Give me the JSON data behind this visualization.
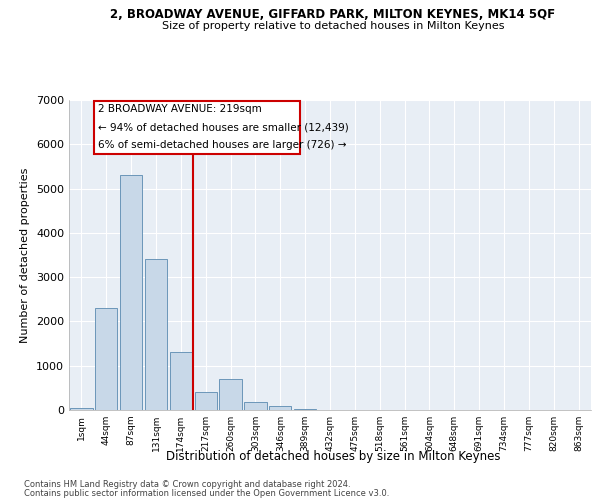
{
  "title1": "2, BROADWAY AVENUE, GIFFARD PARK, MILTON KEYNES, MK14 5QF",
  "title2": "Size of property relative to detached houses in Milton Keynes",
  "xlabel": "Distribution of detached houses by size in Milton Keynes",
  "ylabel": "Number of detached properties",
  "footnote1": "Contains HM Land Registry data © Crown copyright and database right 2024.",
  "footnote2": "Contains public sector information licensed under the Open Government Licence v3.0.",
  "annotation_line1": "2 BROADWAY AVENUE: 219sqm",
  "annotation_line2": "← 94% of detached houses are smaller (12,439)",
  "annotation_line3": "6% of semi-detached houses are larger (726) →",
  "bar_color": "#c8d8e8",
  "bar_edge_color": "#5a8ab0",
  "highlight_color": "#cc0000",
  "bg_color": "#e8eef5",
  "categories": [
    "1sqm",
    "44sqm",
    "87sqm",
    "131sqm",
    "174sqm",
    "217sqm",
    "260sqm",
    "303sqm",
    "346sqm",
    "389sqm",
    "432sqm",
    "475sqm",
    "518sqm",
    "561sqm",
    "604sqm",
    "648sqm",
    "691sqm",
    "734sqm",
    "777sqm",
    "820sqm",
    "863sqm"
  ],
  "values": [
    50,
    2300,
    5300,
    3400,
    1300,
    400,
    700,
    170,
    80,
    30,
    5,
    5,
    2,
    2,
    1,
    1,
    1,
    1,
    0,
    0,
    0
  ],
  "highlight_index": 5,
  "ylim": [
    0,
    7000
  ],
  "yticks": [
    0,
    1000,
    2000,
    3000,
    4000,
    5000,
    6000,
    7000
  ]
}
